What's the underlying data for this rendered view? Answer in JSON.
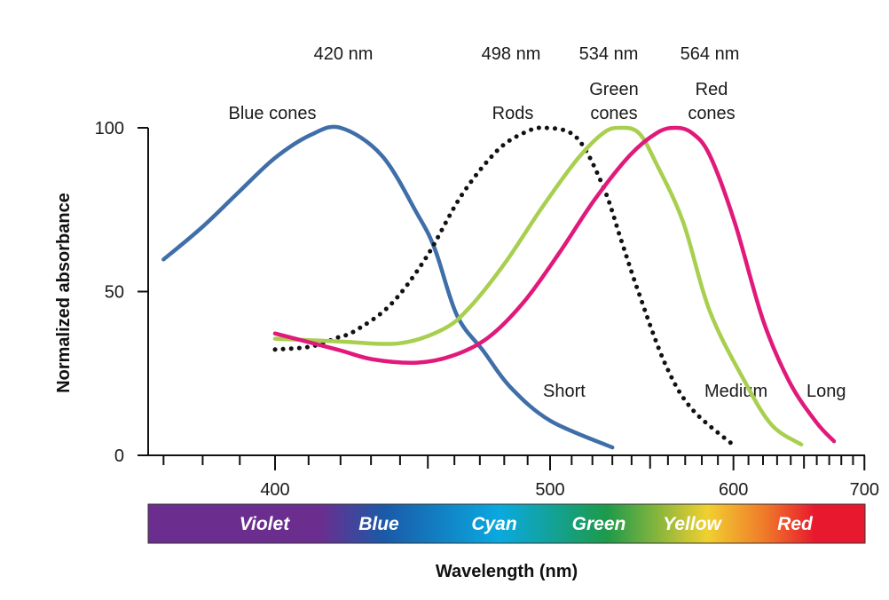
{
  "chart_data": {
    "type": "line",
    "title": "",
    "xlabel": "Wavelength (nm)",
    "ylabel": "Normalized absorbance",
    "x_scale": "reciprocal (linear in 1/wavelength)",
    "xlim": [
      365,
      700
    ],
    "ylim": [
      0,
      100
    ],
    "x_ticks_major": [
      400,
      500,
      600,
      700
    ],
    "x_ticks_minor": [
      370,
      380,
      390,
      410,
      420,
      430,
      440,
      450,
      460,
      470,
      480,
      490,
      510,
      520,
      530,
      540,
      550,
      560,
      570,
      580,
      590,
      610,
      620,
      630,
      640,
      650,
      660,
      670,
      680,
      690
    ],
    "y_ticks": [
      0,
      50,
      100
    ],
    "grid": false,
    "series": [
      {
        "name": "Blue cones",
        "short_label": "Short",
        "peak_label": "420 nm",
        "color": "#3f6ea8",
        "style": "solid",
        "points": [
          [
            370,
            59.8
          ],
          [
            380,
            69.8
          ],
          [
            390,
            80.7
          ],
          [
            400,
            90.8
          ],
          [
            410.6,
            97.8
          ],
          [
            420,
            100
          ],
          [
            433.6,
            91.6
          ],
          [
            446,
            73.9
          ],
          [
            452.6,
            63
          ],
          [
            461,
            42.7
          ],
          [
            471.5,
            31.8
          ],
          [
            482.5,
            20.9
          ],
          [
            500,
            10.6
          ],
          [
            530,
            2.4
          ]
        ]
      },
      {
        "name": "Rods",
        "short_label": "",
        "peak_label": "498 nm",
        "color": "#111111",
        "style": "dotted",
        "points": [
          [
            400,
            32.3
          ],
          [
            410.6,
            33.2
          ],
          [
            418.9,
            35.9
          ],
          [
            424.7,
            38
          ],
          [
            436.6,
            45.9
          ],
          [
            449.3,
            60.3
          ],
          [
            462.7,
            79.3
          ],
          [
            476.9,
            92.9
          ],
          [
            488.2,
            98.4
          ],
          [
            498,
            100
          ],
          [
            512.4,
            97
          ],
          [
            525.4,
            82
          ],
          [
            534.5,
            65.8
          ],
          [
            543.9,
            49.5
          ],
          [
            558.6,
            27.7
          ],
          [
            574.1,
            14.1
          ],
          [
            601.9,
            2.4
          ]
        ]
      },
      {
        "name": "Green cones",
        "short_label": "Medium",
        "peak_label": "534 nm",
        "color": "#a8cf4f",
        "style": "solid",
        "points": [
          [
            400,
            35.6
          ],
          [
            418.9,
            34.8
          ],
          [
            439.7,
            34.2
          ],
          [
            455.9,
            38.6
          ],
          [
            466.2,
            45.4
          ],
          [
            480.6,
            59
          ],
          [
            496,
            75.3
          ],
          [
            512.4,
            90.2
          ],
          [
            525.4,
            98.4
          ],
          [
            534,
            100
          ],
          [
            543.9,
            98.4
          ],
          [
            553.6,
            88.9
          ],
          [
            568.8,
            71.2
          ],
          [
            584.9,
            44
          ],
          [
            607.8,
            22.3
          ],
          [
            626.3,
            9.2
          ],
          [
            647.9,
            3.3
          ]
        ]
      },
      {
        "name": "Red cones",
        "short_label": "Long",
        "peak_label": "564 nm",
        "color": "#e0197a",
        "style": "solid",
        "points": [
          [
            400,
            37.2
          ],
          [
            418.9,
            32.3
          ],
          [
            430.6,
            29.3
          ],
          [
            446,
            28.3
          ],
          [
            459.3,
            30.4
          ],
          [
            473.3,
            35.9
          ],
          [
            488.2,
            46.7
          ],
          [
            504.1,
            61.7
          ],
          [
            521,
            78
          ],
          [
            539.1,
            91.6
          ],
          [
            553.6,
            98.4
          ],
          [
            564,
            100
          ],
          [
            574.1,
            98.4
          ],
          [
            584.9,
            91.6
          ],
          [
            600.8,
            71.2
          ],
          [
            620,
            41.3
          ],
          [
            639.2,
            22.3
          ],
          [
            659.6,
            10.1
          ],
          [
            673.9,
            4.3
          ]
        ]
      }
    ],
    "spectrum_bar": {
      "bands": [
        "Violet",
        "Blue",
        "Cyan",
        "Green",
        "Yellow",
        "Red"
      ],
      "colors": [
        "#6b2e8f",
        "#6b2e8f",
        "#1a5aa8",
        "#0aa9e0",
        "#1d9a4a",
        "#f0d030",
        "#f07a2a",
        "#e8182e"
      ]
    }
  }
}
